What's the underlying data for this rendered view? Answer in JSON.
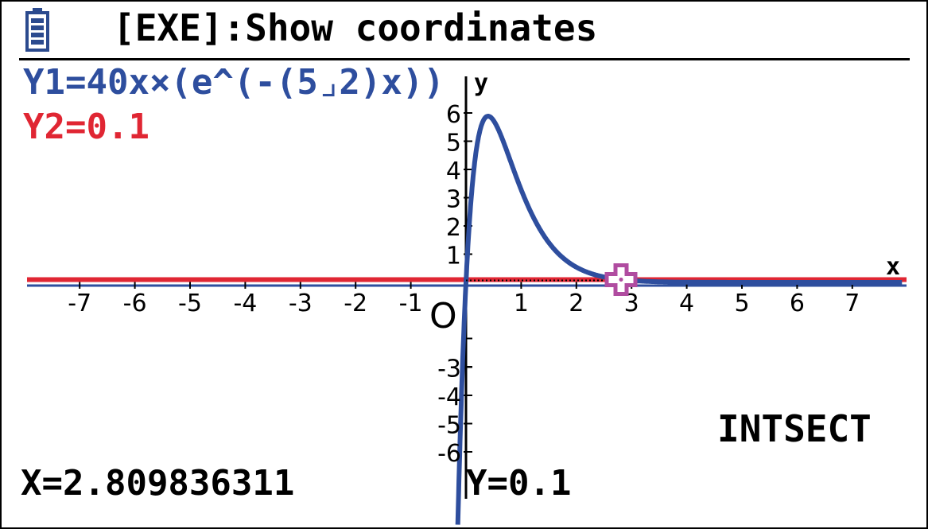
{
  "status_bar": {
    "battery_icon": "battery-icon",
    "text": "[EXE]:Show coordinates"
  },
  "functions": [
    {
      "label": "Y1=40x×(e^(-(5⌟2)x))",
      "color": "#2e4e9e"
    },
    {
      "label": "Y2=0.1",
      "color": "#e02633"
    }
  ],
  "graph": {
    "x_axis_name": "x",
    "y_axis_name": "y",
    "origin_label": "O",
    "xlim": [
      -8,
      8
    ],
    "ylim": [
      -8,
      6.5
    ],
    "x_ticks": [
      "-7",
      "-6",
      "-5",
      "-4",
      "-3",
      "-2",
      "-1",
      "1",
      "2",
      "3",
      "4",
      "5",
      "6",
      "7"
    ],
    "y_ticks_pos": [
      "1",
      "2",
      "3",
      "4",
      "5",
      "6"
    ],
    "y_ticks_neg": [
      "-3",
      "-4",
      "-5",
      "-6"
    ],
    "cursor_icon": "cross-cursor-icon",
    "cursor_color": "#b04ca0",
    "intersection": {
      "x": 2.809836311,
      "y": 0.1
    }
  },
  "readout": {
    "x": "X=2.809836311",
    "y": "Y=0.1",
    "mode": "INTSECT"
  }
}
